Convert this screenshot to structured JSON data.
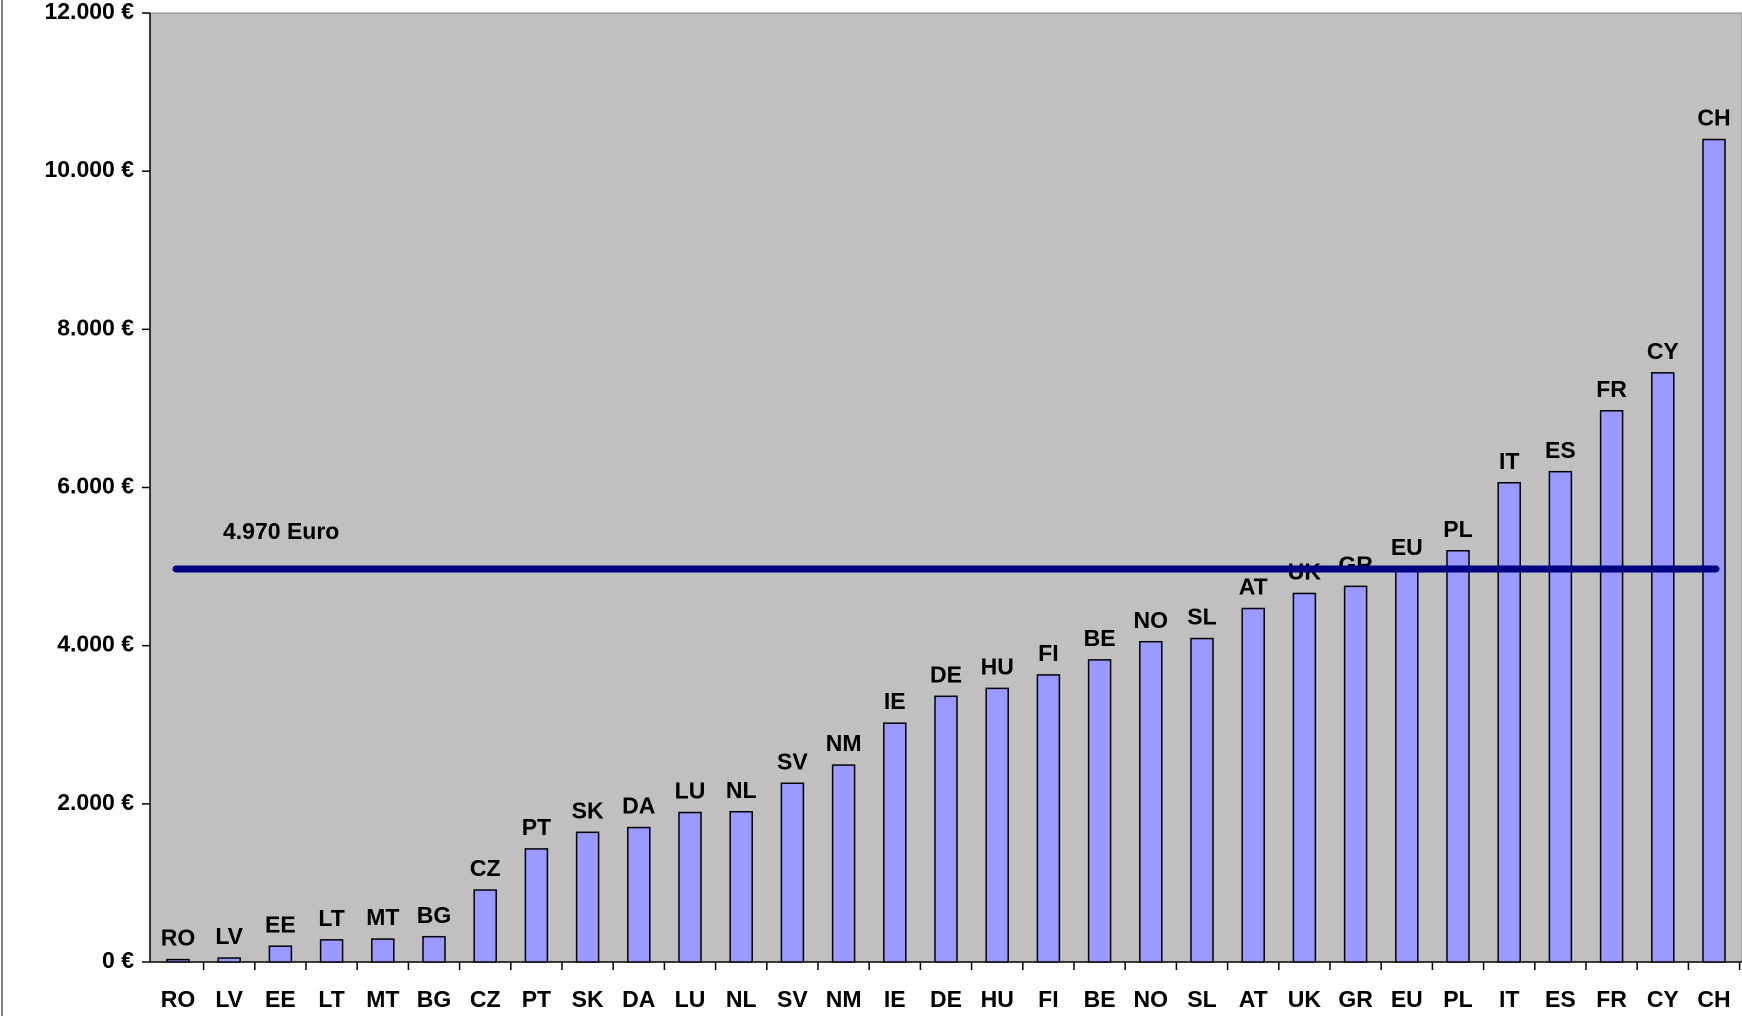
{
  "chart_data": {
    "type": "bar",
    "categories": [
      "RO",
      "LV",
      "EE",
      "LT",
      "MT",
      "BG",
      "CZ",
      "PT",
      "SK",
      "DA",
      "LU",
      "NL",
      "SV",
      "NM",
      "IE",
      "DE",
      "HU",
      "FI",
      "BE",
      "NO",
      "SL",
      "AT",
      "UK",
      "GR",
      "EU",
      "PL",
      "IT",
      "ES",
      "FR",
      "CY",
      "CH"
    ],
    "values": [
      30,
      50,
      200,
      280,
      290,
      320,
      910,
      1430,
      1640,
      1700,
      1890,
      1900,
      2260,
      2490,
      3020,
      3360,
      3460,
      3630,
      3820,
      4050,
      4090,
      4470,
      4660,
      4750,
      4970,
      5200,
      6060,
      6200,
      6970,
      7450,
      10400
    ],
    "color": "#9999ff",
    "ylim": [
      0,
      12000
    ],
    "yticks": [
      {
        "value": 0,
        "label": "0 €"
      },
      {
        "value": 2000,
        "label": "2.000 €"
      },
      {
        "value": 4000,
        "label": "4.000 €"
      },
      {
        "value": 6000,
        "label": "6.000 €"
      },
      {
        "value": 8000,
        "label": "8.000 €"
      },
      {
        "value": 10000,
        "label": "10.000 €"
      },
      {
        "value": 12000,
        "label": "12.000 €"
      }
    ],
    "reference_line": {
      "value": 4970,
      "label": "4.970 Euro",
      "color": "#000080"
    },
    "plot_background": "#c0c0c0"
  }
}
